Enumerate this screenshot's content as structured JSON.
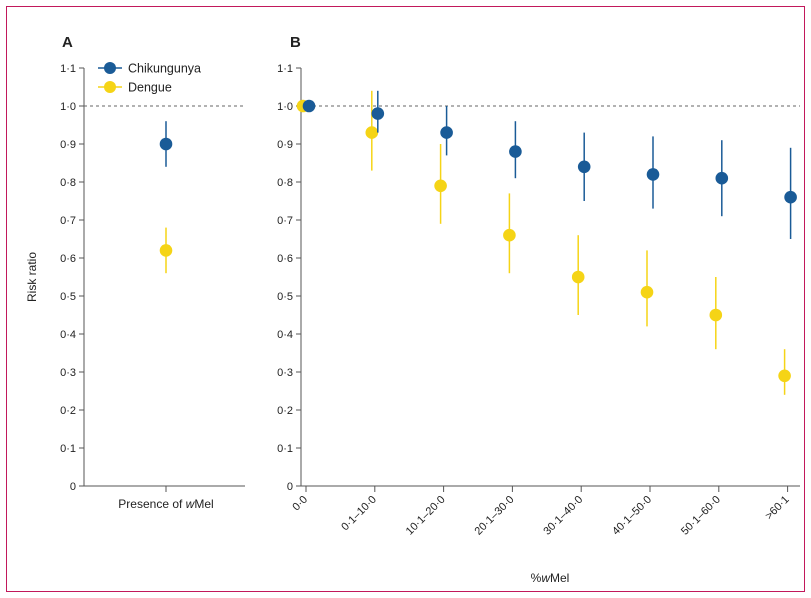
{
  "colors": {
    "chikungunya": "#1a5b97",
    "dengue": "#f5d416",
    "frame": "#c2185b",
    "axis": "#555555",
    "reference_line": "#666666"
  },
  "chart_data": [
    {
      "panel": "A",
      "type": "scatter",
      "subtype": "point-estimate-with-95ci",
      "xlabel": "Presence of wMel",
      "xlabel_prefix": "Presence of ",
      "xlabel_italic": "w",
      "xlabel_suffix": "Mel",
      "ylabel": "Risk ratio",
      "ylim": [
        0,
        1.1
      ],
      "yticks": [
        "0",
        "0·1",
        "0·2",
        "0·3",
        "0·4",
        "0·5",
        "0·6",
        "0·7",
        "0·8",
        "0·9",
        "1·0",
        "1·1"
      ],
      "reference_line": 1.0,
      "legend": {
        "placement": "top-left",
        "entries": [
          "Chikungunya",
          "Dengue"
        ]
      },
      "series": [
        {
          "name": "Chikungunya",
          "color_key": "chikungunya",
          "value": 0.9,
          "ci": [
            0.84,
            0.96
          ]
        },
        {
          "name": "Dengue",
          "color_key": "dengue",
          "value": 0.62,
          "ci": [
            0.56,
            0.68
          ]
        }
      ]
    },
    {
      "panel": "B",
      "type": "scatter",
      "subtype": "point-estimate-with-95ci",
      "xlabel": "%wMel",
      "xlabel_prefix": "%",
      "xlabel_italic": "w",
      "xlabel_suffix": "Mel",
      "ylabel": "",
      "ylim": [
        0,
        1.1
      ],
      "yticks": [
        "0",
        "0·1",
        "0·2",
        "0·3",
        "0·4",
        "0·5",
        "0·6",
        "0·7",
        "0·8",
        "0·9",
        "1·0",
        "1·1"
      ],
      "reference_line": 1.0,
      "categories": [
        "0·0",
        "0·1–10·0",
        "10·1–20·0",
        "20·1–30·0",
        "30·1–40·0",
        "40·1–50·0",
        "50·1–60·0",
        ">60·1"
      ],
      "series": [
        {
          "name": "Chikungunya",
          "color_key": "chikungunya",
          "values": [
            1.0,
            0.98,
            0.93,
            0.88,
            0.84,
            0.82,
            0.81,
            0.76
          ],
          "ci_low": [
            null,
            0.93,
            0.87,
            0.81,
            0.75,
            0.73,
            0.71,
            0.65
          ],
          "ci_high": [
            null,
            1.04,
            1.0,
            0.96,
            0.93,
            0.92,
            0.91,
            0.89
          ]
        },
        {
          "name": "Dengue",
          "color_key": "dengue",
          "values": [
            1.0,
            0.93,
            0.79,
            0.66,
            0.55,
            0.51,
            0.45,
            0.29
          ],
          "ci_low": [
            null,
            0.83,
            0.69,
            0.56,
            0.45,
            0.42,
            0.36,
            0.24
          ],
          "ci_high": [
            null,
            1.04,
            0.9,
            0.77,
            0.66,
            0.62,
            0.55,
            0.36
          ]
        }
      ]
    }
  ]
}
